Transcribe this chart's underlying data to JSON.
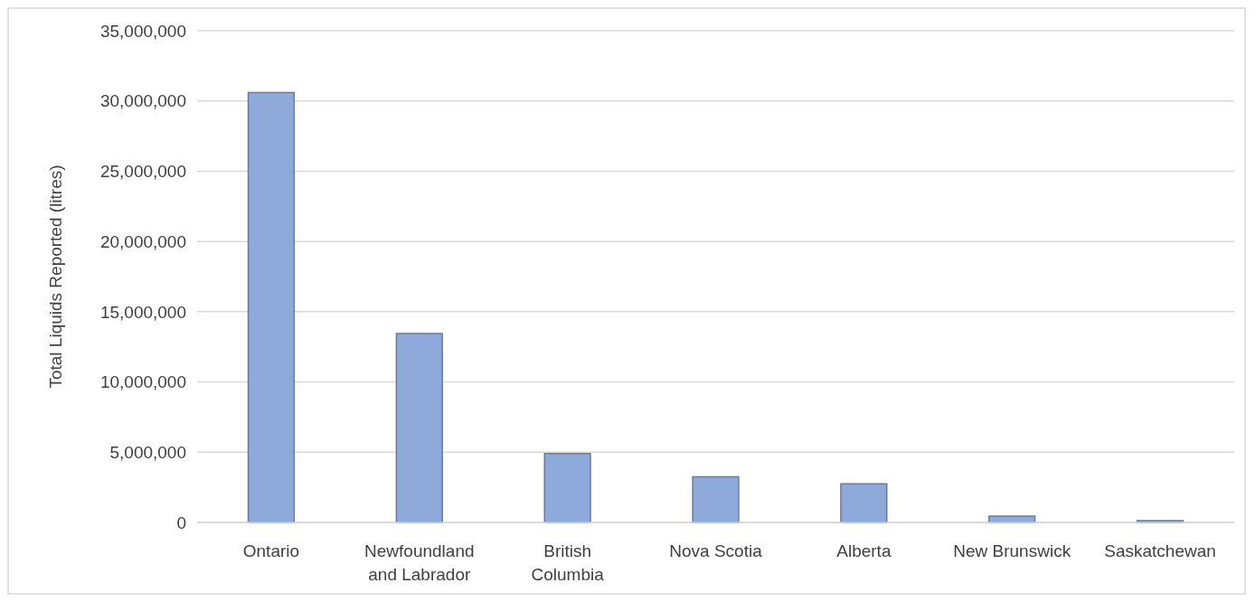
{
  "chart_data": {
    "type": "bar",
    "ylabel": "Total Liquids Reported (litres)",
    "categories": [
      "Ontario",
      "Newfoundland and Labrador",
      "British Columbia",
      "Nova Scotia",
      "Alberta",
      "New Brunswick",
      "Saskatchewan"
    ],
    "values": [
      30600000,
      13450000,
      4900000,
      3250000,
      2750000,
      450000,
      130000
    ],
    "color": "#8eaadb",
    "ylim": [
      0,
      35000000
    ],
    "yticks": [
      {
        "value": 0,
        "label": "0"
      },
      {
        "value": 5000000,
        "label": "5,000,000"
      },
      {
        "value": 10000000,
        "label": "10,000,000"
      },
      {
        "value": 15000000,
        "label": "15,000,000"
      },
      {
        "value": 20000000,
        "label": "20,000,000"
      },
      {
        "value": 25000000,
        "label": "25,000,000"
      },
      {
        "value": 30000000,
        "label": "30,000,000"
      },
      {
        "value": 35000000,
        "label": "35,000,000"
      }
    ],
    "grid": "y"
  }
}
